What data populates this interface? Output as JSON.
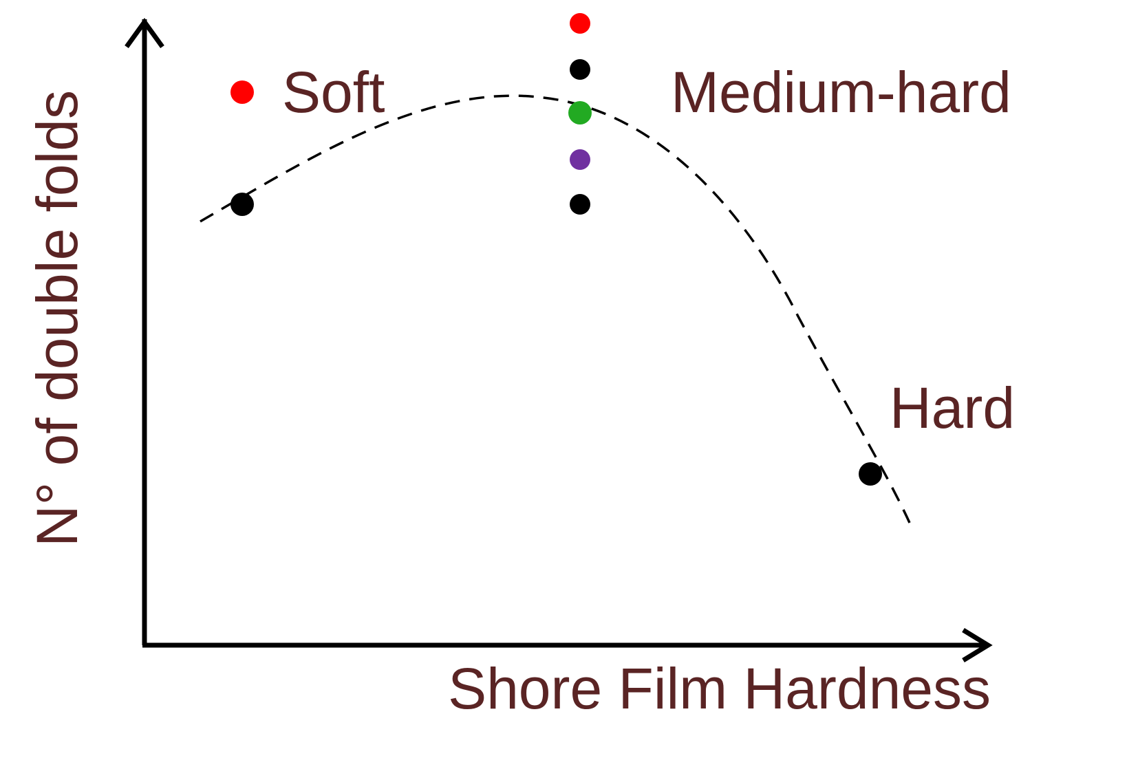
{
  "chart_data": {
    "type": "scatter",
    "title": "",
    "xlabel": "Shore Film Hardness",
    "ylabel": "N° of double folds",
    "x_ticks_shown": false,
    "y_ticks_shown": false,
    "grid": false,
    "legend": "none",
    "axis_color": "#000000",
    "text_color": "#5a2424",
    "annotations": [
      {
        "text": "Soft",
        "near_group": "soft"
      },
      {
        "text": "Medium-hard",
        "near_group": "medium-hard"
      },
      {
        "text": "Hard",
        "near_group": "hard"
      }
    ],
    "points": [
      {
        "group": "soft",
        "x": "soft",
        "y_rank": 5,
        "color": "#ff0000"
      },
      {
        "group": "soft",
        "x": "soft",
        "y_rank": 2,
        "color": "#000000"
      },
      {
        "group": "medium-hard",
        "x": "medium-hard",
        "y_rank": 7,
        "color": "#ff0000"
      },
      {
        "group": "medium-hard",
        "x": "medium-hard",
        "y_rank": 6,
        "color": "#000000"
      },
      {
        "group": "medium-hard",
        "x": "medium-hard",
        "y_rank": 4,
        "color": "#22aa22"
      },
      {
        "group": "medium-hard",
        "x": "medium-hard",
        "y_rank": 3,
        "color": "#7030a0"
      },
      {
        "group": "medium-hard",
        "x": "medium-hard",
        "y_rank": 2,
        "color": "#000000"
      },
      {
        "group": "hard",
        "x": "hard",
        "y_rank": 1,
        "color": "#000000"
      }
    ],
    "trend_line": {
      "style": "dashed",
      "color": "#000000",
      "shape": "rises from soft, peaks near medium-hard, falls steeply to hard"
    }
  }
}
